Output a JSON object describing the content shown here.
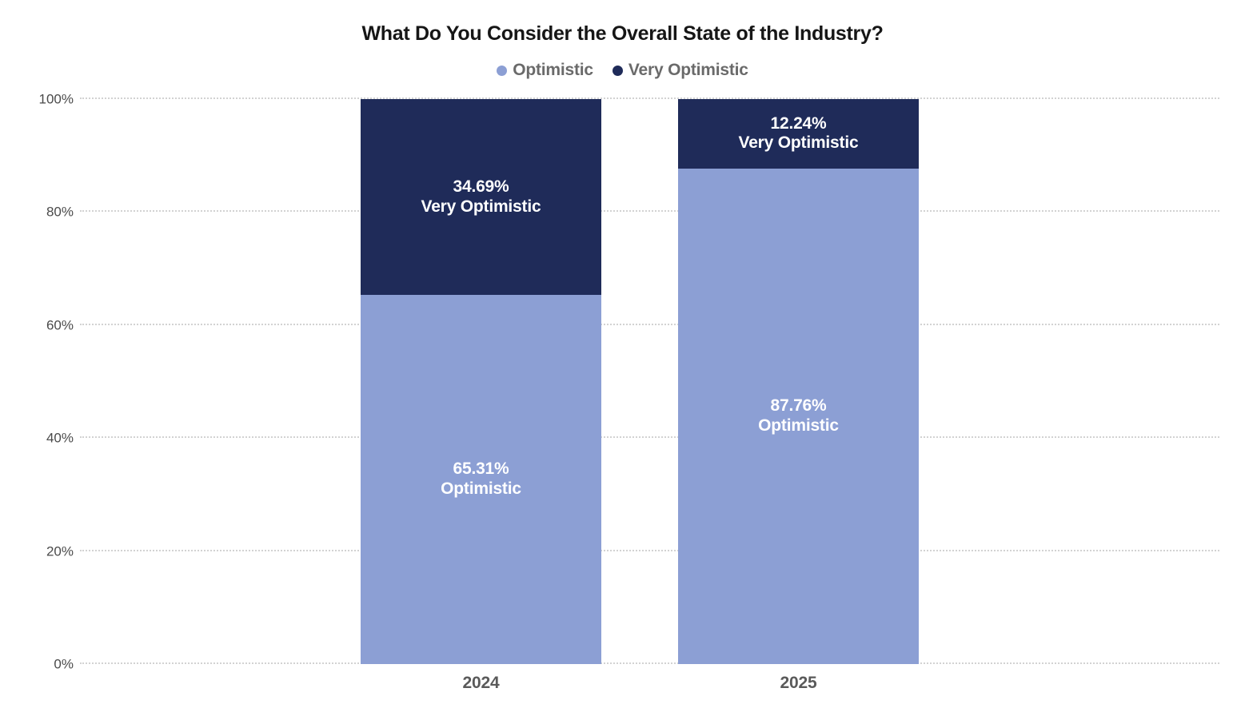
{
  "page": {
    "background_color": "#ffffff"
  },
  "chart_data": {
    "type": "bar",
    "stacked": true,
    "title": "What Do You Consider the Overall State of the Industry?",
    "categories": [
      "2024",
      "2025"
    ],
    "series": [
      {
        "name": "Optimistic",
        "color": "#8C9FD4",
        "values": [
          65.31,
          87.76
        ]
      },
      {
        "name": "Very Optimistic",
        "color": "#1F2B59",
        "values": [
          34.69,
          12.24
        ]
      }
    ],
    "segment_labels": [
      {
        "category": "2024",
        "labels": [
          "65.31% Optimistic",
          "34.69% Very Optimistic"
        ]
      },
      {
        "category": "2025",
        "labels": [
          "87.76% Optimistic",
          "12.24% Very Optimistic"
        ]
      }
    ],
    "ylim": [
      0,
      100
    ],
    "yticks": {
      "values": [
        0,
        20,
        40,
        60,
        80,
        100
      ],
      "labels": [
        "0%",
        "20%",
        "40%",
        "60%",
        "80%",
        "100%"
      ]
    },
    "grid": "horizontal-dotted",
    "legend_position": "top",
    "label_value_format": "two-decimal-percent",
    "text_colors": {
      "title": "#161616",
      "legend": "#6A6A6A",
      "y_ticks": "#4A4A4A",
      "x_ticks": "#5A5A5A",
      "bar_labels": "#FFFFFF"
    }
  }
}
